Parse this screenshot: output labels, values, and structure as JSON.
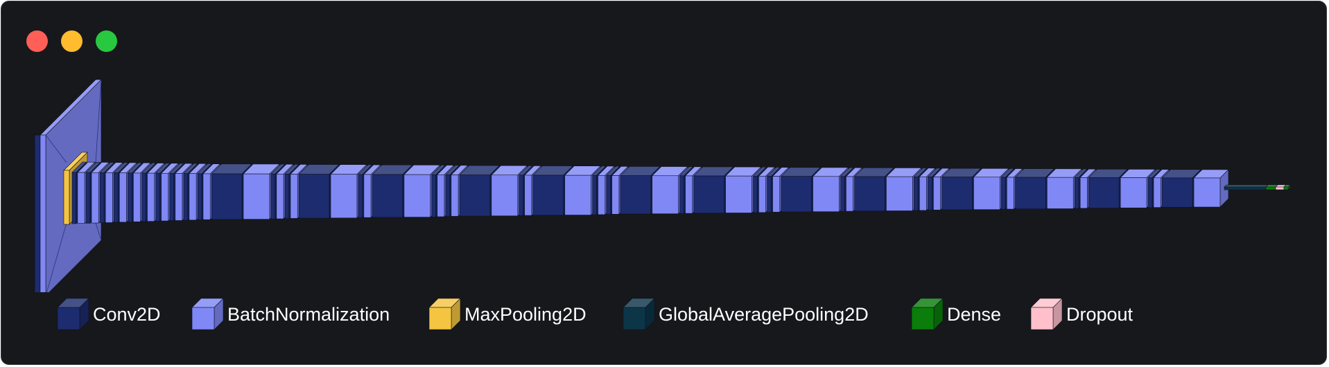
{
  "window": {
    "controls": [
      {
        "name": "close",
        "color": "#ff5f57"
      },
      {
        "name": "minimize",
        "color": "#febc2e"
      },
      {
        "name": "zoom",
        "color": "#28c840"
      }
    ]
  },
  "legend": [
    {
      "label": "Conv2D",
      "color": "#1c2c6e"
    },
    {
      "label": "BatchNormalization",
      "color": "#7f88f5"
    },
    {
      "label": "MaxPooling2D",
      "color": "#f5c542"
    },
    {
      "label": "GlobalAveragePooling2D",
      "color": "#0c3548"
    },
    {
      "label": "Dense",
      "color": "#0a7d0a"
    },
    {
      "label": "Dropout",
      "color": "#ffc0cb"
    }
  ]
}
